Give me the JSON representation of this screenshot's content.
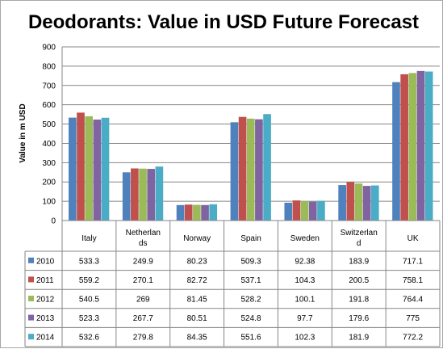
{
  "chart_data": {
    "type": "bar",
    "title": "Deodorants: Value in USD Future Forecast",
    "ylabel": "Value in m USD",
    "xlabel": "",
    "ylim": [
      0,
      900
    ],
    "yticks": [
      0,
      100,
      200,
      300,
      400,
      500,
      600,
      700,
      800,
      900
    ],
    "grid": true,
    "legend": "data-table",
    "categories": [
      "Italy",
      "Netherlands",
      "Norway",
      "Spain",
      "Sweden",
      "Switzerland",
      "UK"
    ],
    "category_display": [
      [
        "Italy"
      ],
      [
        "Netherlan",
        "ds"
      ],
      [
        "Norway"
      ],
      [
        "Spain"
      ],
      [
        "Sweden"
      ],
      [
        "Switzerlan",
        "d"
      ],
      [
        "UK"
      ]
    ],
    "series": [
      {
        "name": "2010",
        "color": "#4f81bd",
        "values": [
          533.3,
          249.9,
          80.23,
          509.3,
          92.38,
          183.9,
          717.1
        ],
        "labels": [
          "533.3",
          "249.9",
          "80.23",
          "509.3",
          "92.38",
          "183.9",
          "717.1"
        ]
      },
      {
        "name": "2011",
        "color": "#c0504d",
        "values": [
          559.2,
          270.1,
          82.72,
          537.1,
          104.3,
          200.5,
          758.1
        ],
        "labels": [
          "559.2",
          "270.1",
          "82.72",
          "537.1",
          "104.3",
          "200.5",
          "758.1"
        ]
      },
      {
        "name": "2012",
        "color": "#9bbb59",
        "values": [
          540.5,
          269,
          81.45,
          528.2,
          100.1,
          191.8,
          764.4
        ],
        "labels": [
          "540.5",
          "269",
          "81.45",
          "528.2",
          "100.1",
          "191.8",
          "764.4"
        ]
      },
      {
        "name": "2013",
        "color": "#8064a2",
        "values": [
          523.3,
          267.7,
          80.51,
          524.8,
          97.7,
          179.6,
          775
        ],
        "labels": [
          "523.3",
          "267.7",
          "80.51",
          "524.8",
          "97.7",
          "179.6",
          "775"
        ]
      },
      {
        "name": "2014",
        "color": "#4bacc6",
        "values": [
          532.6,
          279.8,
          84.35,
          551.6,
          102.3,
          181.9,
          772.2
        ],
        "labels": [
          "532.6",
          "279.8",
          "84.35",
          "551.6",
          "102.3",
          "181.9",
          "772.2"
        ]
      }
    ]
  }
}
